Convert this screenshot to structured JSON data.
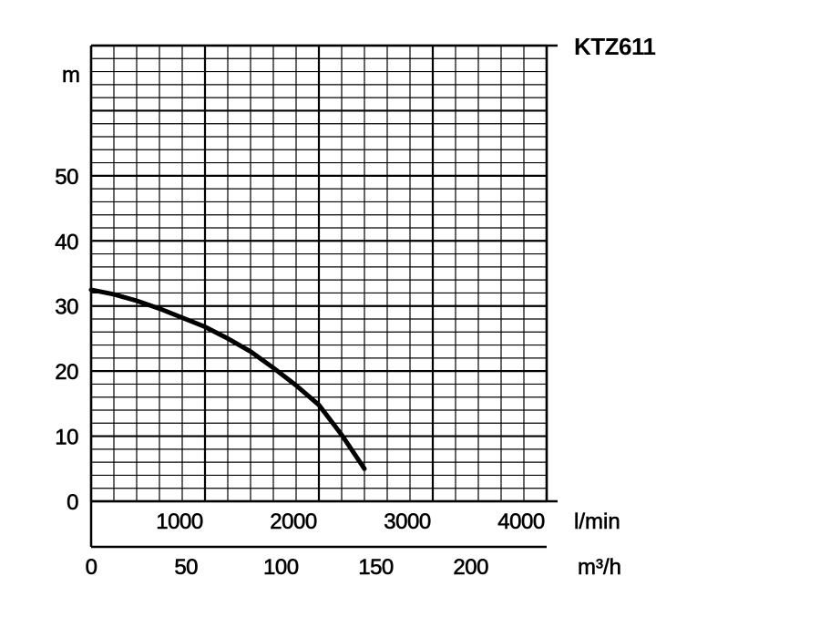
{
  "chart_data": {
    "type": "line",
    "title": "KTZ611",
    "y_unit": "m",
    "x_unit_primary": "l/min",
    "x_unit_secondary": "m³/h",
    "ylim": [
      0,
      70
    ],
    "xlim": [
      0,
      4000
    ],
    "secondary_xlim": [
      0,
      240
    ],
    "grid": true,
    "y_ticks": [
      "0",
      "10",
      "20",
      "30",
      "40",
      "50"
    ],
    "y_tick_values": [
      0,
      10,
      20,
      30,
      40,
      50
    ],
    "x_ticks_primary": [
      "1000",
      "2000",
      "3000",
      "4000"
    ],
    "x_tick_values_primary": [
      1000,
      2000,
      3000,
      4000
    ],
    "x_ticks_secondary": [
      "0",
      "50",
      "100",
      "150",
      "200"
    ],
    "x_tick_values_secondary": [
      0,
      50,
      100,
      150,
      200
    ],
    "series": [
      {
        "x": [
          0,
          200,
          400,
          600,
          800,
          1000,
          1200,
          1400,
          1600,
          1800,
          2000,
          2200,
          2400
        ],
        "y": [
          32.5,
          31.8,
          30.8,
          29.6,
          28.2,
          26.8,
          25.0,
          23.0,
          20.5,
          17.8,
          14.8,
          10.2,
          5.0
        ]
      }
    ]
  }
}
